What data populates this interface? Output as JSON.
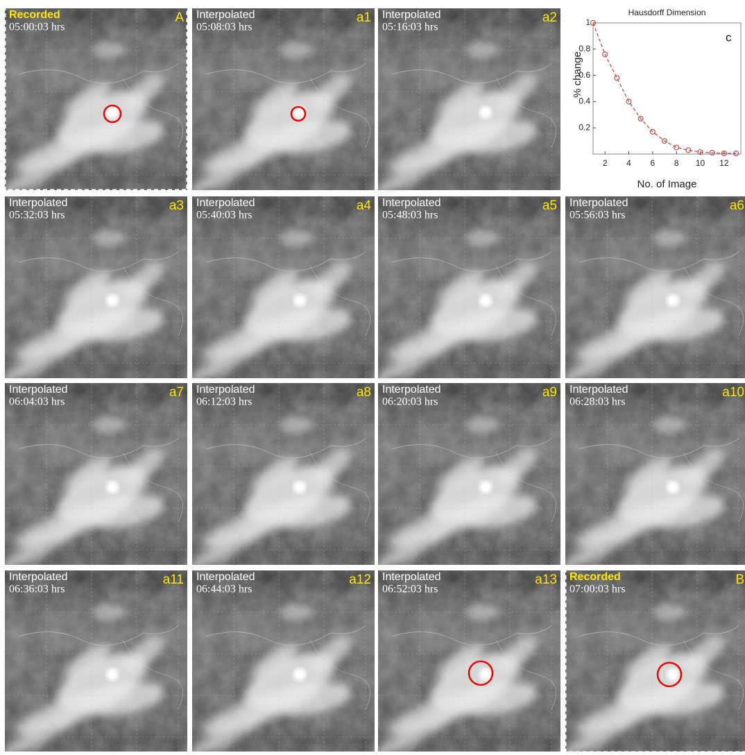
{
  "panels": [
    {
      "status": "Recorded",
      "time": "05:00:03 hrs",
      "tag": "A"
    },
    {
      "status": "Interpolated",
      "time": "05:08:03 hrs",
      "tag": "a1"
    },
    {
      "status": "Interpolated",
      "time": "05:16:03 hrs",
      "tag": "a2"
    },
    {
      "status": "Interpolated",
      "time": "05:32:03 hrs",
      "tag": "a3"
    },
    {
      "status": "Interpolated",
      "time": "05:40:03 hrs",
      "tag": "a4"
    },
    {
      "status": "Interpolated",
      "time": "05:48:03 hrs",
      "tag": "a5"
    },
    {
      "status": "Interpolated",
      "time": "05:56:03 hrs",
      "tag": "a6"
    },
    {
      "status": "Interpolated",
      "time": "06:04:03 hrs",
      "tag": "a7"
    },
    {
      "status": "Interpolated",
      "time": "06:12:03 hrs",
      "tag": "a8"
    },
    {
      "status": "Interpolated",
      "time": "06:20:03 hrs",
      "tag": "a9"
    },
    {
      "status": "Interpolated",
      "time": "06:28:03 hrs",
      "tag": "a10"
    },
    {
      "status": "Interpolated",
      "time": "06:36:03 hrs",
      "tag": "a11"
    },
    {
      "status": "Interpolated",
      "time": "06:44:03 hrs",
      "tag": "a12"
    },
    {
      "status": "Interpolated",
      "time": "06:52:03 hrs",
      "tag": "a13"
    },
    {
      "status": "Recorded",
      "time": "07:00:03 hrs",
      "tag": "B"
    }
  ],
  "chart_data": {
    "type": "line",
    "title": "Hausdorff Dimension",
    "panel_label": "c",
    "x_label": "No. of Image",
    "y_label": "% change",
    "x": [
      1,
      2,
      3,
      4,
      5,
      6,
      7,
      8,
      9,
      10,
      11,
      12,
      13
    ],
    "values": [
      1,
      0.76,
      0.58,
      0.4,
      0.27,
      0.17,
      0.1,
      0.05,
      0.03,
      0.015,
      0.01,
      0.005,
      0.005
    ],
    "color": "#c0504d",
    "xlim": [
      1,
      13
    ],
    "ylim": [
      0,
      1
    ],
    "xticks": [
      2,
      4,
      6,
      8,
      10,
      12
    ],
    "yticks": [
      0.2,
      0.4,
      0.6,
      0.8,
      1
    ]
  }
}
